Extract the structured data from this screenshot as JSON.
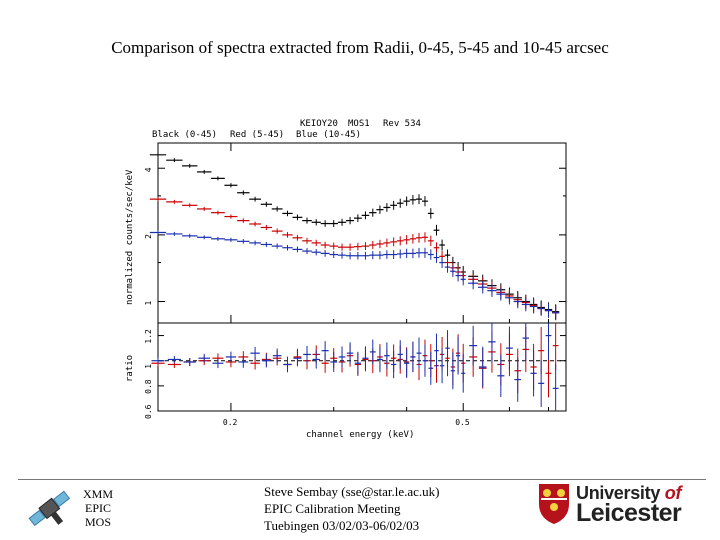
{
  "slide": {
    "title": "Comparison of spectra extracted from Radii, 0-45, 5-45 and 10-45 arcsec"
  },
  "chart_data": {
    "type": "line",
    "header": {
      "obsid": "KEIOY20",
      "instrument": "MOS1",
      "revolution": "Rev 534"
    },
    "legend": [
      "Black (0-45)",
      "Red (5-45)",
      "Blue (10-45)"
    ],
    "xlabel": "channel energy (keV)",
    "ylabel_top": "normalized counts/sec/keV",
    "ylabel_bottom": "ratio",
    "x_ticks": [
      "0.2",
      "0.5"
    ],
    "y_ticks_top": [
      "4",
      "2",
      "1"
    ],
    "y_ticks_bottom": [
      "1.2",
      "1",
      "0.8",
      "0.6"
    ],
    "series_colors": {
      "Black (0-45)": "#000000",
      "Red (5-45)": "#cc0000",
      "Blue (10-45)": "#1a2fb0"
    },
    "x": [
      0.15,
      0.16,
      0.17,
      0.18,
      0.19,
      0.2,
      0.21,
      0.22,
      0.23,
      0.24,
      0.25,
      0.26,
      0.27,
      0.28,
      0.29,
      0.3,
      0.31,
      0.32,
      0.33,
      0.34,
      0.35,
      0.36,
      0.37,
      0.38,
      0.39,
      0.4,
      0.41,
      0.42,
      0.43,
      0.44,
      0.45,
      0.46,
      0.47,
      0.48,
      0.49,
      0.5,
      0.52,
      0.54,
      0.56,
      0.58,
      0.6,
      0.62,
      0.64,
      0.66,
      0.68,
      0.7,
      0.72
    ],
    "series": [
      {
        "name": "Black (0-45)",
        "values": [
          4.6,
          4.35,
          4.1,
          3.85,
          3.6,
          3.35,
          3.1,
          2.9,
          2.75,
          2.62,
          2.5,
          2.4,
          2.32,
          2.28,
          2.25,
          2.25,
          2.28,
          2.32,
          2.38,
          2.45,
          2.52,
          2.6,
          2.66,
          2.72,
          2.78,
          2.84,
          2.88,
          2.9,
          2.84,
          2.5,
          2.1,
          1.8,
          1.62,
          1.5,
          1.42,
          1.36,
          1.3,
          1.24,
          1.18,
          1.13,
          1.08,
          1.04,
          1.0,
          0.97,
          0.94,
          0.92,
          0.9
        ]
      },
      {
        "name": "Red (5-45)",
        "values": [
          2.9,
          2.82,
          2.72,
          2.62,
          2.52,
          2.42,
          2.32,
          2.24,
          2.16,
          2.08,
          2.0,
          1.94,
          1.88,
          1.84,
          1.8,
          1.78,
          1.76,
          1.76,
          1.77,
          1.78,
          1.8,
          1.82,
          1.84,
          1.86,
          1.88,
          1.9,
          1.92,
          1.94,
          1.95,
          1.88,
          1.75,
          1.6,
          1.5,
          1.42,
          1.36,
          1.31,
          1.26,
          1.2,
          1.15,
          1.1,
          1.06,
          1.02,
          0.99,
          0.96,
          0.93,
          0.91,
          0.89
        ]
      },
      {
        "name": "Blue (10-45)",
        "values": [
          2.05,
          2.02,
          1.98,
          1.95,
          1.92,
          1.9,
          1.87,
          1.84,
          1.81,
          1.78,
          1.75,
          1.72,
          1.69,
          1.67,
          1.65,
          1.63,
          1.62,
          1.61,
          1.61,
          1.61,
          1.62,
          1.62,
          1.63,
          1.63,
          1.64,
          1.65,
          1.65,
          1.66,
          1.66,
          1.63,
          1.58,
          1.5,
          1.43,
          1.37,
          1.31,
          1.26,
          1.21,
          1.16,
          1.12,
          1.08,
          1.04,
          1.0,
          0.97,
          0.95,
          0.93,
          0.91,
          0.89
        ]
      }
    ],
    "ratio_series": [
      {
        "name": "Black (0-45)",
        "values": [
          1.0,
          1.0,
          1.0,
          1.0,
          1.0,
          1.0,
          1.0,
          1.0,
          1.0,
          1.0,
          1.0,
          1.0,
          1.0,
          1.0,
          1.0,
          1.0,
          1.0,
          1.0,
          1.0,
          1.0,
          1.0,
          1.0,
          1.0,
          1.0,
          1.0,
          1.0,
          1.0,
          1.0,
          1.0,
          1.0,
          1.0,
          1.0,
          1.0,
          1.0,
          1.0,
          1.0,
          1.0,
          1.0,
          1.0,
          1.0,
          1.0,
          1.0,
          1.0,
          1.0,
          1.0,
          1.0,
          1.0
        ]
      },
      {
        "name": "Red (5-45)",
        "values": [
          0.98,
          0.97,
          0.99,
          1.0,
          1.02,
          0.99,
          1.03,
          0.98,
          1.01,
          1.02,
          0.97,
          1.03,
          1.0,
          1.05,
          0.98,
          1.02,
          0.99,
          1.04,
          0.97,
          1.01,
          1.0,
          1.03,
          0.98,
          1.02,
          1.01,
          0.99,
          1.03,
          0.97,
          1.04,
          1.0,
          0.96,
          1.05,
          1.02,
          0.95,
          1.06,
          0.98,
          1.03,
          0.94,
          1.07,
          0.97,
          1.05,
          0.92,
          1.09,
          0.95,
          1.08,
          0.9,
          1.12
        ]
      },
      {
        "name": "Blue (10-45)",
        "values": [
          1.0,
          1.01,
          0.99,
          1.02,
          0.98,
          1.03,
          0.99,
          1.06,
          1.0,
          1.04,
          0.97,
          1.02,
          1.05,
          1.01,
          1.08,
          0.99,
          1.03,
          1.06,
          0.98,
          1.02,
          1.07,
          1.01,
          1.04,
          0.97,
          1.05,
          0.98,
          1.03,
          1.06,
          1.0,
          0.94,
          1.08,
          0.96,
          1.1,
          0.92,
          1.04,
          0.9,
          1.12,
          0.95,
          1.15,
          0.88,
          1.1,
          0.85,
          1.18,
          0.9,
          0.82,
          1.2,
          0.78
        ]
      }
    ]
  },
  "footer": {
    "xmm_lines": [
      "XMM",
      "EPIC",
      "MOS"
    ],
    "speaker_lines": [
      "Steve Sembay (sse@star.le.ac.uk)",
      "EPIC Calibration Meeting",
      "Tuebingen 03/02/03-06/02/03"
    ],
    "university_of": "University",
    "university_of_word": "of",
    "university_name": "Leicester"
  }
}
